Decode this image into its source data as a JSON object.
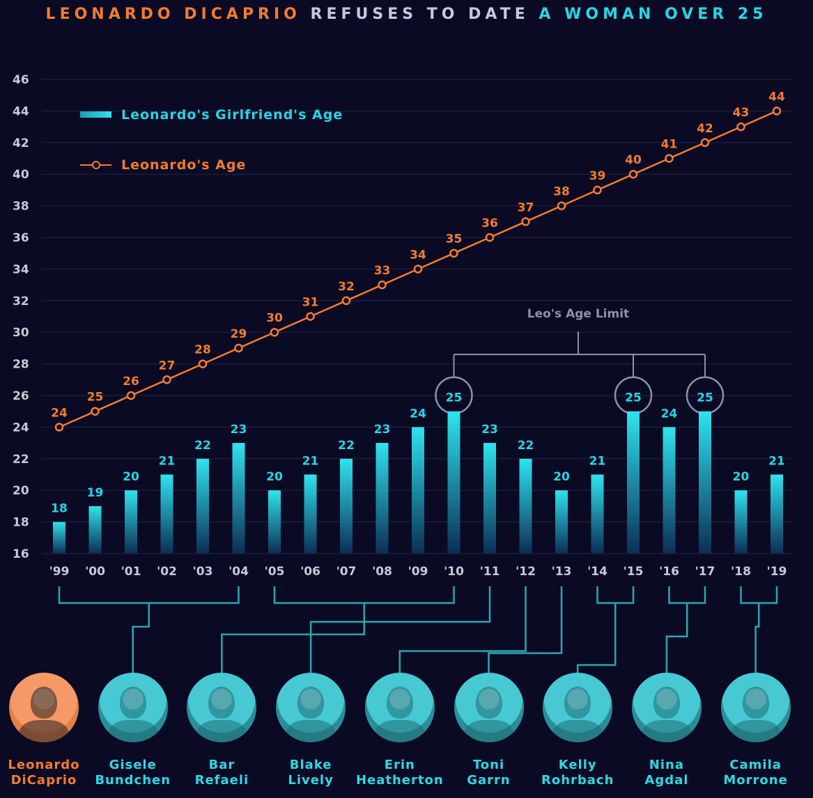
{
  "title": {
    "part1": "LEONARDO DICAPRIO",
    "part2": " REFUSES TO DATE ",
    "part3": "A WOMAN OVER 25"
  },
  "colors": {
    "background": "#0b0a24",
    "leo": "#f47c2c",
    "girlfriend": "#22d8e6",
    "annotation": "#8a93a8",
    "bracket": "#2aa7b3",
    "grid": "#23244a"
  },
  "chart_data": {
    "type": "bar",
    "categories": [
      "'99",
      "'00",
      "'01",
      "'02",
      "'03",
      "'04",
      "'05",
      "'06",
      "'07",
      "'08",
      "'09",
      "'10",
      "'11",
      "'12",
      "'13",
      "'14",
      "'15",
      "'16",
      "'17",
      "'18",
      "'19"
    ],
    "series": [
      {
        "name": "Leonardo's Girlfriend's Age",
        "type": "bar",
        "values": [
          18,
          19,
          20,
          21,
          22,
          23,
          20,
          21,
          22,
          23,
          24,
          25,
          23,
          22,
          20,
          21,
          25,
          24,
          25,
          20,
          21
        ]
      },
      {
        "name": "Leonardo's Age",
        "type": "line",
        "values": [
          24,
          25,
          26,
          27,
          28,
          29,
          30,
          31,
          32,
          33,
          34,
          35,
          36,
          37,
          38,
          39,
          40,
          41,
          42,
          43,
          44
        ]
      }
    ],
    "ylim": [
      16,
      46
    ],
    "yticks": [
      16,
      18,
      20,
      22,
      24,
      26,
      28,
      30,
      32,
      34,
      36,
      38,
      40,
      42,
      44,
      46
    ],
    "grid": true,
    "legend": "top-left",
    "annotation": {
      "text": "Leo's Age Limit",
      "highlight_indices": [
        11,
        16,
        18
      ]
    }
  },
  "people": [
    {
      "name": "Leonardo DiCaprio",
      "line1": "Leonardo",
      "line2": "DiCaprio",
      "years": []
    },
    {
      "name": "Gisele Bundchen",
      "line1": "Gisele",
      "line2": "Bundchen",
      "years": [
        0,
        5
      ]
    },
    {
      "name": "Bar Refaeli",
      "line1": "Bar",
      "line2": "Refaeli",
      "years": [
        6,
        11
      ]
    },
    {
      "name": "Blake Lively",
      "line1": "Blake",
      "line2": "Lively",
      "years": [
        12
      ]
    },
    {
      "name": "Erin Heatherton",
      "line1": "Erin",
      "line2": "Heatherton",
      "years": [
        13
      ]
    },
    {
      "name": "Toni Garrn",
      "line1": "Toni",
      "line2": "Garrn",
      "years": [
        14
      ]
    },
    {
      "name": "Kelly Rohrbach",
      "line1": "Kelly",
      "line2": "Rohrbach",
      "years": [
        15,
        16
      ]
    },
    {
      "name": "Nina Agdal",
      "line1": "Nina",
      "line2": "Agdal",
      "years": [
        17,
        18
      ]
    },
    {
      "name": "Camila Morrone",
      "line1": "Camila",
      "line2": "Morrone",
      "years": [
        19,
        20
      ]
    }
  ]
}
